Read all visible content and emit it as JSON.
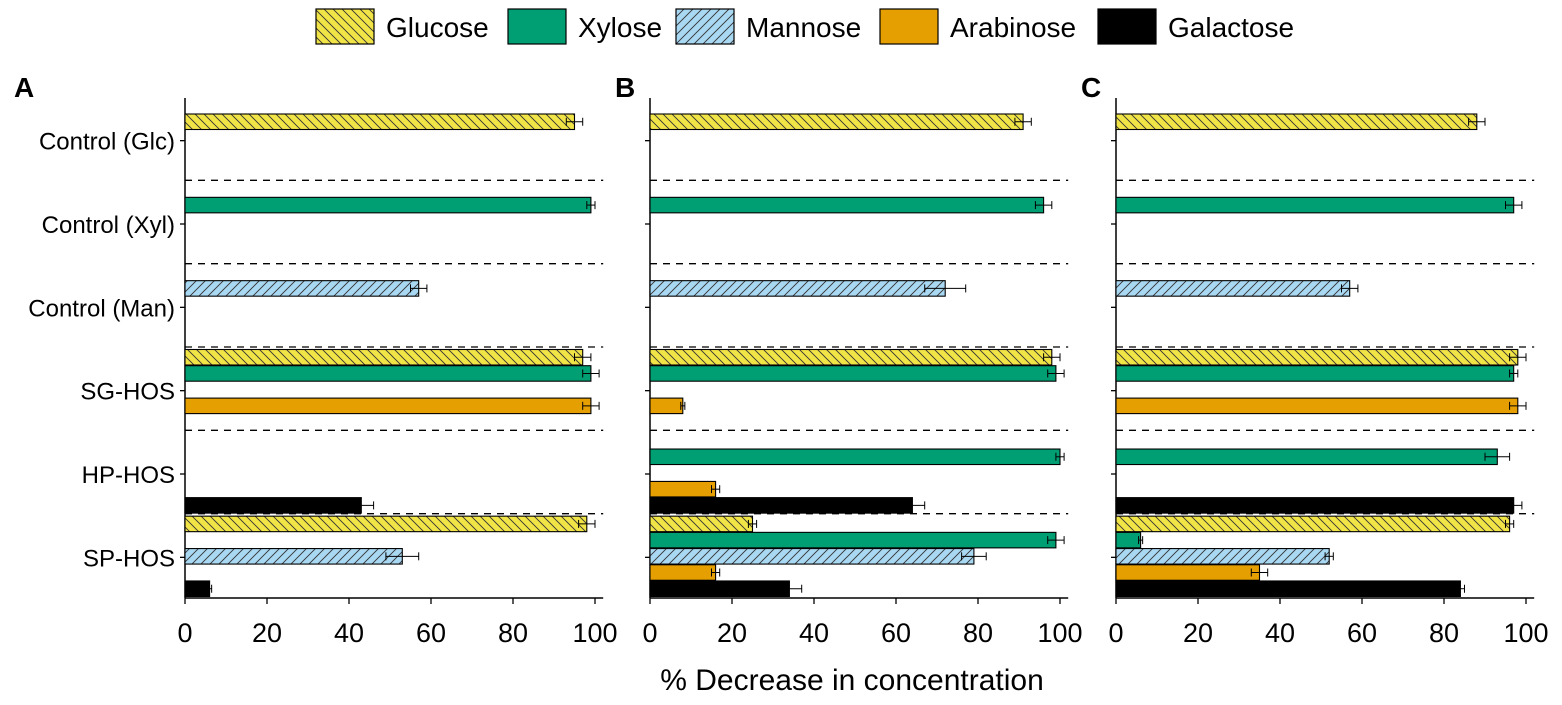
{
  "chart_data": {
    "type": "bar",
    "orientation": "horizontal",
    "xlabel": "% Decrease in concentration",
    "xlim": [
      0,
      100
    ],
    "xticks": [
      0,
      20,
      40,
      60,
      80,
      100
    ],
    "categories": [
      "Control (Glc)",
      "Control (Xyl)",
      "Control (Man)",
      "SG-HOS",
      "HP-HOS",
      "SP-HOS"
    ],
    "legend": {
      "position": "top-center",
      "entries": [
        {
          "name": "Glucose",
          "color": "#f1e447",
          "pattern": "hatch-back"
        },
        {
          "name": "Xylose",
          "color": "#009e73",
          "pattern": "solid"
        },
        {
          "name": "Mannose",
          "color": "#a9d8f2",
          "pattern": "hatch-forward"
        },
        {
          "name": "Arabinose",
          "color": "#e69f00",
          "pattern": "solid"
        },
        {
          "name": "Galactose",
          "color": "#000000",
          "pattern": "solid"
        }
      ]
    },
    "panels": [
      {
        "label": "A",
        "bars": [
          {
            "category": "Control (Glc)",
            "sugar": "Glucose",
            "value": 95,
            "error": 2
          },
          {
            "category": "Control (Xyl)",
            "sugar": "Xylose",
            "value": 99,
            "error": 1
          },
          {
            "category": "Control (Man)",
            "sugar": "Mannose",
            "value": 57,
            "error": 2
          },
          {
            "category": "SG-HOS",
            "sugar": "Glucose",
            "value": 97,
            "error": 2
          },
          {
            "category": "SG-HOS",
            "sugar": "Xylose",
            "value": 99,
            "error": 2
          },
          {
            "category": "SG-HOS",
            "sugar": "Arabinose",
            "value": 99,
            "error": 2
          },
          {
            "category": "HP-HOS",
            "sugar": "Galactose",
            "value": 43,
            "error": 3
          },
          {
            "category": "SP-HOS",
            "sugar": "Glucose",
            "value": 98,
            "error": 2
          },
          {
            "category": "SP-HOS",
            "sugar": "Mannose",
            "value": 53,
            "error": 4
          },
          {
            "category": "SP-HOS",
            "sugar": "Galactose",
            "value": 6,
            "error": 0.5
          }
        ]
      },
      {
        "label": "B",
        "bars": [
          {
            "category": "Control (Glc)",
            "sugar": "Glucose",
            "value": 91,
            "error": 2
          },
          {
            "category": "Control (Xyl)",
            "sugar": "Xylose",
            "value": 96,
            "error": 2
          },
          {
            "category": "Control (Man)",
            "sugar": "Mannose",
            "value": 72,
            "error": 5
          },
          {
            "category": "SG-HOS",
            "sugar": "Glucose",
            "value": 98,
            "error": 2
          },
          {
            "category": "SG-HOS",
            "sugar": "Xylose",
            "value": 99,
            "error": 2
          },
          {
            "category": "SG-HOS",
            "sugar": "Arabinose",
            "value": 8,
            "error": 0.5
          },
          {
            "category": "HP-HOS",
            "sugar": "Xylose",
            "value": 100,
            "error": 1
          },
          {
            "category": "HP-HOS",
            "sugar": "Arabinose",
            "value": 16,
            "error": 1
          },
          {
            "category": "HP-HOS",
            "sugar": "Galactose",
            "value": 64,
            "error": 3
          },
          {
            "category": "SP-HOS",
            "sugar": "Glucose",
            "value": 25,
            "error": 1
          },
          {
            "category": "SP-HOS",
            "sugar": "Xylose",
            "value": 99,
            "error": 2
          },
          {
            "category": "SP-HOS",
            "sugar": "Mannose",
            "value": 79,
            "error": 3
          },
          {
            "category": "SP-HOS",
            "sugar": "Arabinose",
            "value": 16,
            "error": 1
          },
          {
            "category": "SP-HOS",
            "sugar": "Galactose",
            "value": 34,
            "error": 3
          }
        ]
      },
      {
        "label": "C",
        "bars": [
          {
            "category": "Control (Glc)",
            "sugar": "Glucose",
            "value": 88,
            "error": 2
          },
          {
            "category": "Control (Xyl)",
            "sugar": "Xylose",
            "value": 97,
            "error": 2
          },
          {
            "category": "Control (Man)",
            "sugar": "Mannose",
            "value": 57,
            "error": 2
          },
          {
            "category": "SG-HOS",
            "sugar": "Glucose",
            "value": 98,
            "error": 2
          },
          {
            "category": "SG-HOS",
            "sugar": "Xylose",
            "value": 97,
            "error": 1
          },
          {
            "category": "SG-HOS",
            "sugar": "Arabinose",
            "value": 98,
            "error": 2
          },
          {
            "category": "HP-HOS",
            "sugar": "Xylose",
            "value": 93,
            "error": 3
          },
          {
            "category": "HP-HOS",
            "sugar": "Galactose",
            "value": 97,
            "error": 2
          },
          {
            "category": "SP-HOS",
            "sugar": "Glucose",
            "value": 96,
            "error": 1
          },
          {
            "category": "SP-HOS",
            "sugar": "Xylose",
            "value": 6,
            "error": 0.5
          },
          {
            "category": "SP-HOS",
            "sugar": "Mannose",
            "value": 52,
            "error": 1
          },
          {
            "category": "SP-HOS",
            "sugar": "Arabinose",
            "value": 35,
            "error": 2
          },
          {
            "category": "SP-HOS",
            "sugar": "Galactose",
            "value": 84,
            "error": 1
          }
        ]
      }
    ]
  }
}
